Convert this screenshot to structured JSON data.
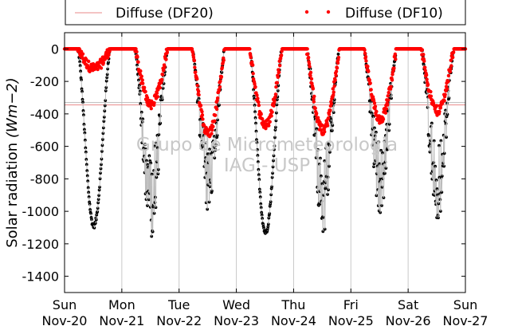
{
  "chart_data": {
    "type": "scatter",
    "xlabel": "",
    "ylabel_prefix": "Solar radiation ",
    "ylabel_unit": "(Wm−2)",
    "ylim": [
      -1500,
      100
    ],
    "yticks": [
      0,
      -200,
      -400,
      -600,
      -800,
      -1000,
      -1200,
      -1400
    ],
    "ytick_labels": [
      "0",
      "-200",
      "-400",
      "-600",
      "-800",
      "-1000",
      "-1200",
      "-1400"
    ],
    "xlim": [
      "2016-11-20",
      "2016-11-27"
    ],
    "xticks": [
      {
        "day": "Sun",
        "date": "Nov-20"
      },
      {
        "day": "Mon",
        "date": "Nov-21"
      },
      {
        "day": "Tue",
        "date": "Nov-22"
      },
      {
        "day": "Wed",
        "date": "Nov-23"
      },
      {
        "day": "Thu",
        "date": "Nov-24"
      },
      {
        "day": "Fri",
        "date": "Nov-25"
      },
      {
        "day": "Sat",
        "date": "Nov-26"
      },
      {
        "day": "Sun",
        "date": "Nov-27"
      }
    ],
    "grid": "vertical",
    "legend": {
      "placement": "top",
      "entries": [
        {
          "label": "Diffuse (DF20)",
          "style": "line",
          "color": "#e88a8a"
        },
        {
          "label": "Diffuse (DF10)",
          "style": "dots",
          "color": "#ff0000"
        }
      ]
    },
    "hlines": [
      {
        "value": -330,
        "color": "#bbbbbb"
      },
      {
        "value": -345,
        "color": "#e88a8a"
      }
    ],
    "daily_minimum_global": [
      -1090,
      -1170,
      -1030,
      -1130,
      -1150,
      -1035,
      -1080
    ],
    "daily_minimum_diffuse": [
      -120,
      -340,
      -520,
      -470,
      -500,
      -430,
      -380
    ],
    "series": [
      {
        "role": "global",
        "color": "#000000"
      },
      {
        "role": "diffuse",
        "label": "Diffuse (DF10)",
        "color": "#ff0000"
      }
    ],
    "watermark": [
      "Grupo de Micrometeorologia",
      "IAG - USP"
    ]
  }
}
